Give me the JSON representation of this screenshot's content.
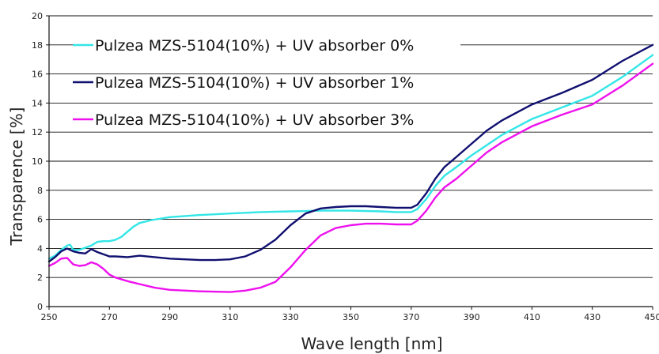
{
  "chart_data": {
    "type": "line",
    "title": "",
    "xlabel": "Wave length [nm]",
    "ylabel": "Transparence [%]",
    "xlim": [
      250,
      450
    ],
    "ylim": [
      0,
      20
    ],
    "x_ticks": [
      250,
      270,
      290,
      310,
      330,
      350,
      370,
      390,
      410,
      430,
      450
    ],
    "y_ticks": [
      0,
      2,
      4,
      6,
      8,
      10,
      12,
      14,
      16,
      18,
      20
    ],
    "grid": "horizontal",
    "legend_position": "top-left",
    "series": [
      {
        "name": "Pulzea MZS-5104(10%) + UV absorber 0%",
        "color": "#33e6e6",
        "x": [
          250,
          252,
          254,
          256,
          257,
          258,
          260,
          262,
          264,
          266,
          268,
          270,
          272,
          274,
          276,
          278,
          280,
          284,
          290,
          300,
          310,
          320,
          330,
          340,
          350,
          360,
          365,
          370,
          372,
          375,
          378,
          381,
          385,
          390,
          395,
          400,
          410,
          420,
          430,
          440,
          450
        ],
        "y": [
          3.3,
          3.5,
          3.9,
          4.2,
          4.25,
          3.9,
          3.9,
          4.05,
          4.2,
          4.45,
          4.5,
          4.5,
          4.6,
          4.8,
          5.15,
          5.5,
          5.75,
          5.95,
          6.15,
          6.3,
          6.4,
          6.5,
          6.55,
          6.6,
          6.6,
          6.55,
          6.5,
          6.5,
          6.7,
          7.4,
          8.3,
          9.0,
          9.6,
          10.4,
          11.1,
          11.8,
          12.9,
          13.7,
          14.5,
          15.8,
          17.3
        ]
      },
      {
        "name": "Pulzea MZS-5104(10%) + UV absorber 1%",
        "color": "#101070",
        "x": [
          250,
          252,
          254,
          256,
          258,
          260,
          262,
          264,
          266,
          268,
          270,
          272,
          276,
          280,
          285,
          290,
          300,
          305,
          310,
          315,
          320,
          325,
          330,
          335,
          340,
          345,
          350,
          355,
          360,
          365,
          370,
          372,
          375,
          378,
          381,
          385,
          390,
          395,
          400,
          410,
          420,
          430,
          440,
          450
        ],
        "y": [
          3.1,
          3.4,
          3.8,
          4.0,
          3.8,
          3.7,
          3.65,
          3.95,
          3.75,
          3.6,
          3.45,
          3.45,
          3.4,
          3.5,
          3.4,
          3.3,
          3.2,
          3.2,
          3.25,
          3.45,
          3.9,
          4.6,
          5.6,
          6.4,
          6.75,
          6.85,
          6.9,
          6.9,
          6.85,
          6.8,
          6.8,
          7.0,
          7.8,
          8.8,
          9.6,
          10.3,
          11.2,
          12.1,
          12.8,
          13.9,
          14.7,
          15.6,
          16.9,
          18.0
        ]
      },
      {
        "name": "Pulzea MZS-5104(10%) + UV absorber 3%",
        "color": "#ee11ee",
        "x": [
          250,
          252,
          254,
          256,
          258,
          260,
          262,
          264,
          266,
          268,
          270,
          272,
          276,
          280,
          285,
          290,
          300,
          310,
          315,
          320,
          325,
          330,
          335,
          340,
          345,
          350,
          355,
          360,
          365,
          370,
          372,
          375,
          378,
          381,
          385,
          390,
          395,
          400,
          410,
          420,
          430,
          440,
          450
        ],
        "y": [
          2.8,
          3.0,
          3.3,
          3.35,
          2.9,
          2.8,
          2.85,
          3.05,
          2.9,
          2.6,
          2.2,
          2.0,
          1.75,
          1.55,
          1.3,
          1.15,
          1.05,
          1.0,
          1.1,
          1.3,
          1.7,
          2.7,
          3.9,
          4.9,
          5.4,
          5.6,
          5.7,
          5.7,
          5.65,
          5.65,
          5.9,
          6.6,
          7.5,
          8.2,
          8.8,
          9.7,
          10.6,
          11.3,
          12.4,
          13.2,
          13.9,
          15.2,
          16.7
        ]
      }
    ]
  }
}
